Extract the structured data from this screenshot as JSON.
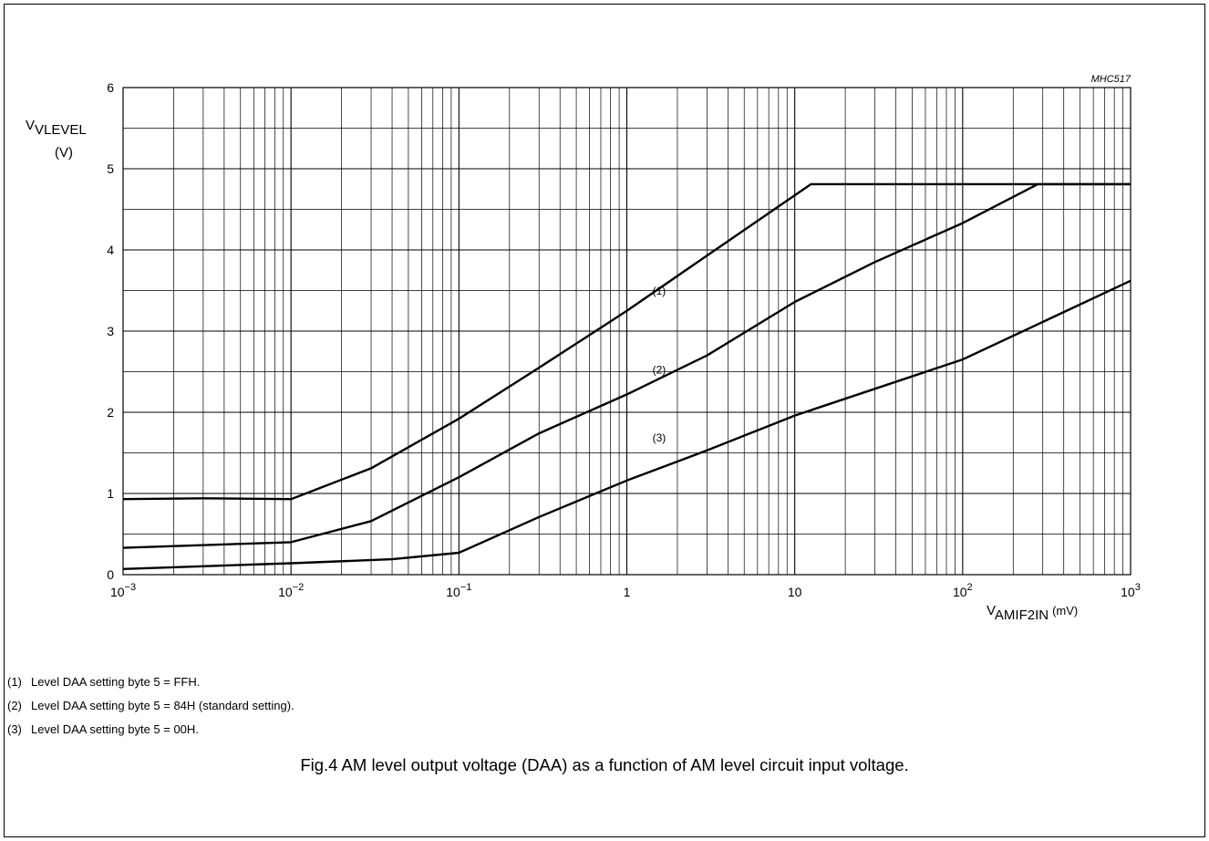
{
  "chart_data": {
    "type": "line",
    "code": "MHC517",
    "xscale": "log",
    "xlim": [
      0.001,
      1000
    ],
    "ylim": [
      0,
      6
    ],
    "grid": true,
    "ylabel": {
      "main": "V",
      "sub": "VLEVEL",
      "unit": "(V)"
    },
    "xlabel": {
      "main": "V",
      "sub": "AMIF2IN",
      "unit": "(mV)"
    },
    "yticks": [
      "0",
      "1",
      "2",
      "3",
      "4",
      "5",
      "6"
    ],
    "xticks": [
      {
        "base": "10",
        "exp": "−3"
      },
      {
        "base": "10",
        "exp": "−2"
      },
      {
        "base": "10",
        "exp": "−1"
      },
      {
        "base": "1",
        "exp": ""
      },
      {
        "base": "10",
        "exp": ""
      },
      {
        "base": "10",
        "exp": "2"
      },
      {
        "base": "10",
        "exp": "3"
      }
    ],
    "series": [
      {
        "name": "(1)",
        "x": [
          0.001,
          0.003,
          0.01,
          0.03,
          0.1,
          0.3,
          1,
          3,
          12.5,
          1000
        ],
        "y": [
          0.93,
          0.94,
          0.93,
          1.31,
          1.92,
          2.55,
          3.25,
          3.93,
          4.81,
          4.81
        ]
      },
      {
        "name": "(2)",
        "x": [
          0.001,
          0.01,
          0.03,
          0.1,
          0.3,
          1,
          3,
          10,
          30,
          100,
          280,
          1000
        ],
        "y": [
          0.33,
          0.4,
          0.66,
          1.2,
          1.74,
          2.22,
          2.7,
          3.36,
          3.85,
          4.33,
          4.81,
          4.81
        ]
      },
      {
        "name": "(3)",
        "x": [
          0.001,
          0.01,
          0.04,
          0.1,
          0.3,
          1,
          3,
          10,
          100,
          1000
        ],
        "y": [
          0.07,
          0.14,
          0.19,
          0.27,
          0.71,
          1.16,
          1.53,
          1.96,
          2.65,
          3.62
        ]
      }
    ]
  },
  "notes": [
    {
      "num": "(1)",
      "text": "Level DAA setting byte 5 = FFH."
    },
    {
      "num": "(2)",
      "text": "Level DAA setting byte 5 = 84H (standard setting)."
    },
    {
      "num": "(3)",
      "text": "Level DAA setting byte 5 = 00H."
    }
  ],
  "caption": "Fig.4  AM level output voltage (DAA) as a function of AM level circuit input voltage."
}
